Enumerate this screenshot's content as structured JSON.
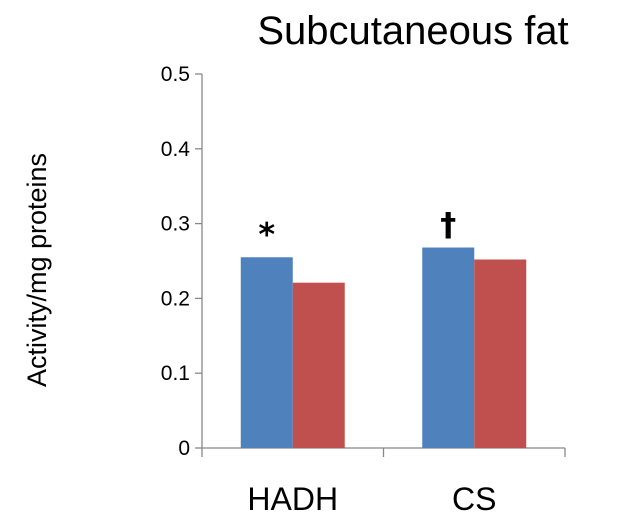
{
  "chart_data": {
    "type": "bar",
    "title": "Subcutaneous fat",
    "ylabel": "Activity/mg proteins",
    "xlabel": "",
    "categories": [
      "HADH",
      "CS"
    ],
    "ylim": [
      0,
      0.5
    ],
    "yticks": [
      "0",
      "0.1",
      "0.2",
      "0.3",
      "0.4",
      "0.5"
    ],
    "series": [
      {
        "color": "#4F81BD",
        "values": [
          0.255,
          0.268
        ]
      },
      {
        "color": "#C0504D",
        "values": [
          0.221,
          0.252
        ]
      }
    ],
    "annotations": [
      {
        "text": "*",
        "category": 0,
        "series": 0
      },
      {
        "text": "†",
        "category": 1,
        "series": 0
      }
    ],
    "grid": false,
    "legend": "none"
  }
}
